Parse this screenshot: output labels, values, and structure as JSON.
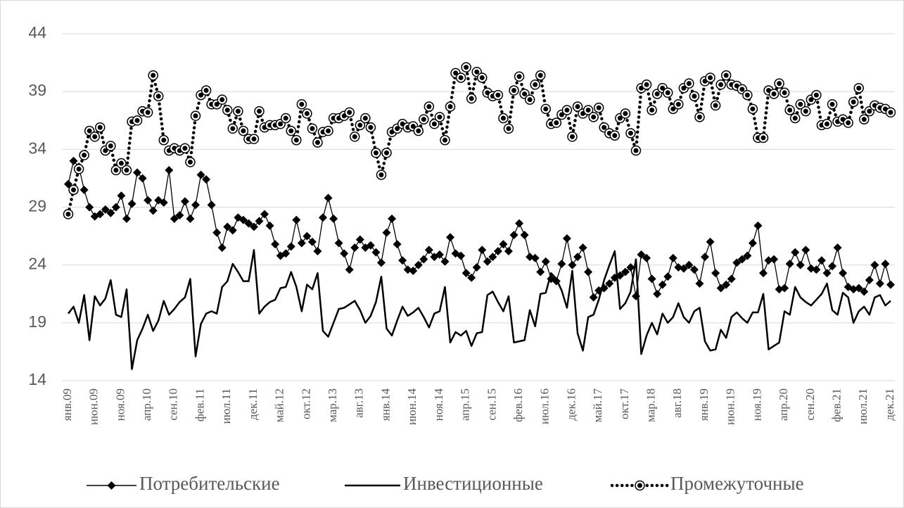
{
  "chart_data": {
    "type": "line",
    "categories": [
      "янв.09",
      null,
      null,
      null,
      null,
      "июн.09",
      null,
      null,
      null,
      null,
      "ноя.09",
      null,
      null,
      null,
      null,
      "апр.10",
      null,
      null,
      null,
      null,
      "сен.10",
      null,
      null,
      null,
      null,
      "фев.11",
      null,
      null,
      null,
      null,
      "июл.11",
      null,
      null,
      null,
      null,
      "дек.11",
      null,
      null,
      null,
      null,
      "май.12",
      null,
      null,
      null,
      null,
      "окт.12",
      null,
      null,
      null,
      null,
      "мар.13",
      null,
      null,
      null,
      null,
      "авг.13",
      null,
      null,
      null,
      null,
      "янв.14",
      null,
      null,
      null,
      null,
      "июн.14",
      null,
      null,
      null,
      null,
      "ноя.14",
      null,
      null,
      null,
      null,
      "апр.15",
      null,
      null,
      null,
      null,
      "сен.15",
      null,
      null,
      null,
      null,
      "фев.16",
      null,
      null,
      null,
      null,
      "июл.16",
      null,
      null,
      null,
      null,
      "дек.16",
      null,
      null,
      null,
      null,
      "май.17",
      null,
      null,
      null,
      null,
      "окт.17",
      null,
      null,
      null,
      null,
      "мар.18",
      null,
      null,
      null,
      null,
      "авг.18",
      null,
      null,
      null,
      null,
      "янв.19",
      null,
      null,
      null,
      null,
      "июн.19",
      null,
      null,
      null,
      null,
      "ноя.19",
      null,
      null,
      null,
      null,
      "апр.20",
      null,
      null,
      null,
      null,
      "сен.20",
      null,
      null,
      null,
      null,
      "фев.21",
      null,
      null,
      null,
      null,
      "июл.21",
      null,
      null,
      null,
      null,
      "дек.21"
    ],
    "series": [
      {
        "name": "Потребительские",
        "color": "#000000",
        "marker": "diamond",
        "dash": "solid",
        "values": [
          31,
          33,
          32.5,
          30.5,
          29,
          28.2,
          28.4,
          28.8,
          28.5,
          29,
          30,
          28,
          29.3,
          32,
          31.5,
          29.6,
          28.7,
          29.6,
          29.4,
          32.2,
          28,
          28.3,
          29.5,
          28,
          29.2,
          31.8,
          31.4,
          29.2,
          26.8,
          25.5,
          27.3,
          27,
          28.1,
          27.9,
          27.6,
          27.3,
          27.8,
          28.4,
          27.4,
          25.8,
          24.8,
          25,
          25.6,
          27.9,
          25.9,
          26.5,
          26,
          25.2,
          28.1,
          29.8,
          28,
          25.9,
          25,
          23.6,
          25.5,
          26.2,
          25.5,
          25.7,
          25.1,
          24.2,
          26.8,
          28,
          25.8,
          24.4,
          23.6,
          23.5,
          24,
          24.5,
          25.3,
          24.7,
          24.9,
          24.3,
          26.4,
          25,
          24.8,
          23.3,
          22.9,
          23.8,
          25.3,
          24.3,
          24.7,
          25.2,
          25.8,
          25.2,
          26.6,
          27.6,
          26.6,
          24.7,
          24.6,
          23.4,
          24.3,
          22.8,
          22.6,
          24.1,
          26.3,
          24,
          24.7,
          25.5,
          23.4,
          21.2,
          21.8,
          22,
          22.4,
          22.9,
          23.1,
          23.4,
          23.8,
          21.3,
          24.9,
          24.6,
          22.8,
          21.5,
          22.3,
          23,
          24.6,
          23.8,
          23.7,
          24,
          23.6,
          22.4,
          24.7,
          26,
          23.3,
          22,
          22.3,
          22.8,
          24.2,
          24.5,
          24.8,
          25.9,
          27.4,
          23.3,
          24.4,
          24.5,
          21.9,
          22,
          24.1,
          25.1,
          24,
          25.3,
          23.7,
          23.6,
          24.4,
          23.3,
          23.9,
          25.5,
          23.3,
          22.1,
          21.9,
          22,
          21.7,
          22.7,
          24,
          22.4,
          24.1,
          22.3
        ]
      },
      {
        "name": "Инвестиционные",
        "color": "#000000",
        "marker": "none",
        "dash": "solid",
        "values": [
          19.8,
          20.4,
          19,
          21.4,
          17.5,
          21.3,
          20.5,
          21.1,
          22.7,
          19.7,
          19.5,
          21.9,
          15,
          17.5,
          18.5,
          19.7,
          18.3,
          19.2,
          20.9,
          19.7,
          20.2,
          20.8,
          21.2,
          22.8,
          16.1,
          18.9,
          19.8,
          20,
          19.8,
          22.1,
          22.6,
          24.1,
          23.4,
          22.6,
          22.6,
          25.3,
          19.8,
          20.4,
          20.8,
          21,
          22,
          22.1,
          23.4,
          22.1,
          20,
          22.3,
          21.9,
          23.3,
          18.3,
          17.8,
          19,
          20.2,
          20.3,
          20.6,
          20.9,
          20.1,
          19,
          19.6,
          20.8,
          23,
          18.5,
          17.9,
          19.2,
          20.4,
          19.6,
          19.9,
          20.3,
          19.5,
          18.6,
          19.8,
          20,
          22.1,
          17.3,
          18.2,
          17.9,
          18.3,
          17,
          18.1,
          18.2,
          21.4,
          21.7,
          20.8,
          20,
          21.3,
          17.3,
          17.4,
          17.5,
          20.1,
          18.7,
          21.5,
          21.6,
          23.3,
          22.8,
          21.8,
          20.3,
          23.5,
          18.1,
          16.6,
          19.5,
          19.7,
          21,
          22.7,
          24,
          25.2,
          20.2,
          20.7,
          21.7,
          24.5,
          16.3,
          17.9,
          19,
          18,
          19.8,
          19,
          19.5,
          20.7,
          19.5,
          19,
          20,
          20.3,
          17.4,
          16.6,
          16.7,
          18.4,
          17.7,
          19.5,
          19.9,
          19.4,
          19,
          19.9,
          19.9,
          21.5,
          16.7,
          17,
          17.3,
          20,
          19.7,
          22.1,
          21.2,
          20.8,
          20.5,
          21,
          21.5,
          22.4,
          20.1,
          19.7,
          21.6,
          21.2,
          19,
          20,
          20.4,
          19.7,
          21.2,
          21.4,
          20.5,
          20.9
        ]
      },
      {
        "name": "Промежуточные",
        "color": "#000000",
        "marker": "circle",
        "dash": "dotted",
        "values": [
          28.4,
          30.5,
          32.3,
          33.5,
          35.6,
          35.1,
          35.9,
          33.9,
          34.3,
          32.2,
          32.8,
          32.2,
          36.4,
          36.5,
          37.3,
          37.2,
          40.4,
          38.6,
          34.8,
          33.9,
          34.1,
          33.9,
          34.1,
          32.9,
          36.9,
          38.7,
          39.1,
          37.9,
          37.9,
          38.3,
          37.4,
          35.8,
          37.3,
          35.6,
          34.9,
          34.9,
          37.3,
          35.9,
          36.1,
          36.1,
          36.2,
          36.7,
          35.6,
          34.8,
          37.9,
          37.1,
          35.8,
          34.6,
          35.5,
          35.6,
          36.7,
          36.7,
          36.9,
          37.2,
          35.1,
          36.1,
          36.7,
          35.9,
          33.7,
          31.8,
          33.7,
          35.5,
          35.8,
          36.2,
          35.9,
          36,
          35.6,
          36.6,
          37.7,
          36.2,
          36.8,
          34.8,
          37.7,
          40.6,
          40.2,
          41.1,
          38.4,
          40.7,
          40.2,
          38.9,
          38.6,
          38.7,
          36.7,
          35.8,
          39.1,
          40.3,
          38.8,
          38.3,
          39.6,
          40.4,
          37.5,
          36.2,
          36.3,
          37,
          37.4,
          35.1,
          37.7,
          37.1,
          37.4,
          36.8,
          37.6,
          35.9,
          35.4,
          35.2,
          36.7,
          37.1,
          35.4,
          33.9,
          39.3,
          39.6,
          37.4,
          38.8,
          39.3,
          38.9,
          37.5,
          37.9,
          39.3,
          39.7,
          38.6,
          36.8,
          39.9,
          40.2,
          37.8,
          39.6,
          40.4,
          39.6,
          39.5,
          39.2,
          38.7,
          37.5,
          35,
          35,
          39.1,
          38.8,
          39.7,
          38.9,
          37.4,
          36.7,
          37.9,
          37.3,
          38.3,
          38.7,
          36.1,
          36.2,
          37.9,
          36.4,
          36.6,
          36.3,
          38.1,
          39.3,
          36.6,
          37.3,
          37.8,
          37.6,
          37.5,
          37.2
        ]
      }
    ],
    "ylim": [
      14,
      44
    ],
    "yticks": [
      14,
      19,
      24,
      29,
      34,
      39,
      44
    ],
    "grid": true,
    "legend": "bottom"
  }
}
